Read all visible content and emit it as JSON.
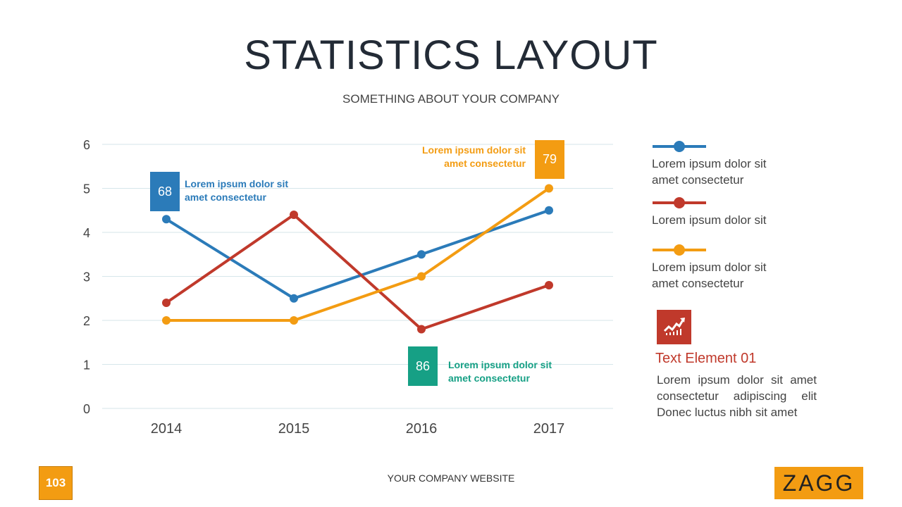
{
  "header": {
    "title": "STATISTICS LAYOUT",
    "subtitle": "SOMETHING ABOUT YOUR COMPANY"
  },
  "chart_data": {
    "type": "line",
    "categories": [
      "2014",
      "2015",
      "2016",
      "2017"
    ],
    "ylim": [
      0,
      6
    ],
    "yticks": [
      0,
      1,
      2,
      3,
      4,
      5,
      6
    ],
    "grid": true,
    "series": [
      {
        "name": "Lorem ipsum dolor sit amet consectetur",
        "color": "#2b7bb9",
        "values": [
          4.3,
          2.5,
          3.5,
          4.5
        ]
      },
      {
        "name": "Lorem ipsum dolor sit",
        "color": "#c0392b",
        "values": [
          2.4,
          4.4,
          1.8,
          2.8
        ]
      },
      {
        "name": "Lorem ipsum dolor sit amet consectetur",
        "color": "#f39c12",
        "values": [
          2.0,
          2.0,
          3.0,
          5.0
        ]
      }
    ],
    "annotations": [
      {
        "value": "68",
        "text1": "Lorem ipsum dolor sit",
        "text2": "amet consectetur",
        "color": "#2b7bb9"
      },
      {
        "value": "79",
        "text1": "Lorem ipsum dolor sit",
        "text2": "amet consectetur",
        "color": "#f39c12"
      },
      {
        "value": "86",
        "text1": "Lorem ipsum dolor sit",
        "text2": "amet consectetur",
        "color": "#16a085"
      }
    ]
  },
  "legend": [
    {
      "line1": "Lorem ipsum dolor sit",
      "line2": "amet consectetur"
    },
    {
      "line1": "Lorem ipsum dolor sit"
    },
    {
      "line1": "Lorem ipsum dolor sit",
      "line2": "amet consectetur"
    }
  ],
  "text_element": {
    "icon": "growth-chart-icon",
    "title": "Text Element 01",
    "body": "Lorem ipsum dolor sit amet consectetur adipiscing elit Donec luctus nibh sit amet",
    "color": "#c0392b"
  },
  "footer": {
    "page": "103",
    "website": "YOUR COMPANY WEBSITE",
    "logo": "ZAGG"
  }
}
